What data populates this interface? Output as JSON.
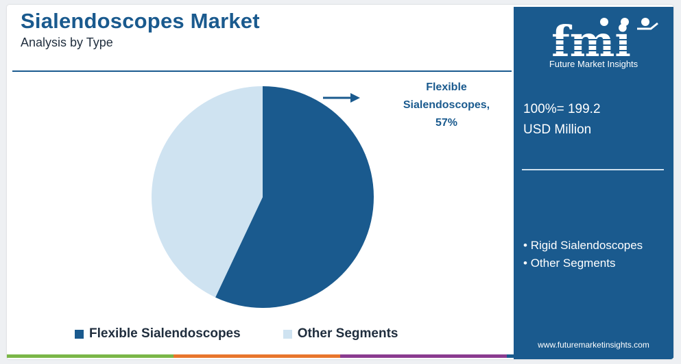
{
  "header": {
    "title": "Sialendoscopes Market",
    "subtitle": "Analysis by Type"
  },
  "callout": {
    "line1": "Flexible",
    "line2": "Sialendoscopes,",
    "line3": "57%"
  },
  "legend": {
    "items": [
      {
        "label": "Flexible Sialendoscopes",
        "color": "#1a5a8e"
      },
      {
        "label": "Other Segments",
        "color": "#cfe3f1"
      }
    ]
  },
  "sidebar": {
    "logo_text": "fmi",
    "logo_tagline": "Future Market Insights",
    "total_line1": "100%= 199.2",
    "total_line2": "USD Million",
    "segments": [
      "Rigid Sialendoscopes",
      "Other Segments"
    ],
    "website": "www.futuremarketinsights.com"
  },
  "colors": {
    "brand": "#1a5a8e",
    "light": "#cfe3f1",
    "bottom_bar": [
      "#7ab648",
      "#e8762c",
      "#8a3b8f",
      "#1a5a8e"
    ]
  },
  "chart_data": {
    "type": "pie",
    "categories": [
      "Flexible Sialendoscopes",
      "Other Segments"
    ],
    "values": [
      57,
      43
    ],
    "colors": [
      "#1a5a8e",
      "#cfe3f1"
    ],
    "unit": "%",
    "total": "100%= 199.2 USD Million"
  }
}
